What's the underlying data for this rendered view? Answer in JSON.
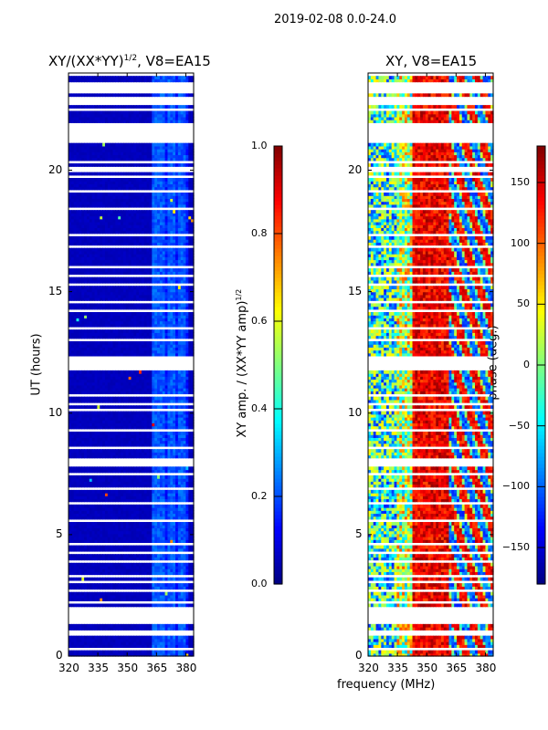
{
  "chart_data": [
    {
      "type": "heatmap",
      "suptitle": "2019-02-08 0.0-24.0",
      "title": "XY/(XX*YY)^1/2, V8=EA15",
      "title_main": "XY/(XX*YY)",
      "title_sup": "1/2",
      "title_tail": ", V8=EA15",
      "xlabel": "frequency (MHz)",
      "ylabel": "UT (hours)",
      "xlim": [
        320,
        384
      ],
      "ylim": [
        0,
        24
      ],
      "xticks": [
        "320",
        "335",
        "350",
        "365",
        "380"
      ],
      "yticks": [
        "0",
        "5",
        "10",
        "15",
        "20"
      ],
      "colorbar": {
        "label_main": "XY amp. / (XX*YY amp)",
        "label_sup": "1/2",
        "range": [
          0,
          1
        ],
        "ticks": [
          "0.0",
          "0.2",
          "0.4",
          "0.6",
          "0.8",
          "1.0"
        ],
        "colormap": "jet"
      },
      "typical_value": 0.05,
      "bright_band_mhz": [
        363,
        381
      ],
      "bright_band_value": 0.17
    },
    {
      "type": "heatmap",
      "title": "XY, V8=EA15",
      "xlim": [
        320,
        384
      ],
      "ylim": [
        0,
        24
      ],
      "xticks": [
        "320",
        "335",
        "350",
        "365",
        "380"
      ],
      "yticks": [
        "0",
        "5",
        "10",
        "15",
        "20"
      ],
      "colorbar": {
        "label": "phase (deg.)",
        "range": [
          -180,
          180
        ],
        "ticks": [
          "150",
          "100",
          "50",
          "0",
          "−50",
          "−100",
          "−150"
        ],
        "tick_values": [
          150,
          100,
          50,
          0,
          -50,
          -100,
          -150
        ],
        "colormap": "jet"
      }
    }
  ],
  "gaps_hours": [
    [
      23.17,
      23.7
    ],
    [
      21.1,
      22.0
    ],
    [
      12.9,
      13.1
    ],
    [
      11.8,
      12.3
    ],
    [
      7.8,
      8.15
    ],
    [
      1.3,
      2.0
    ],
    [
      0.85,
      1.05
    ]
  ],
  "thin_gaps_hours": [
    23.95,
    22.5,
    22.7,
    22.9,
    23.02,
    20.3,
    20.15,
    20.0,
    19.7,
    19.45,
    19.1,
    18.6,
    18.4,
    17.3,
    16.9,
    16.0,
    15.7,
    15.3,
    15.0,
    14.6,
    14.2,
    13.8,
    13.5,
    10.7,
    10.4,
    10.1,
    9.6,
    9.3,
    9.0,
    8.6,
    8.4,
    7.5,
    7.2,
    6.9,
    6.6,
    6.3,
    6.0,
    5.6,
    4.6,
    4.3,
    3.9,
    3.3,
    3.1,
    2.7,
    2.4,
    2.2,
    0.6,
    0.3
  ]
}
